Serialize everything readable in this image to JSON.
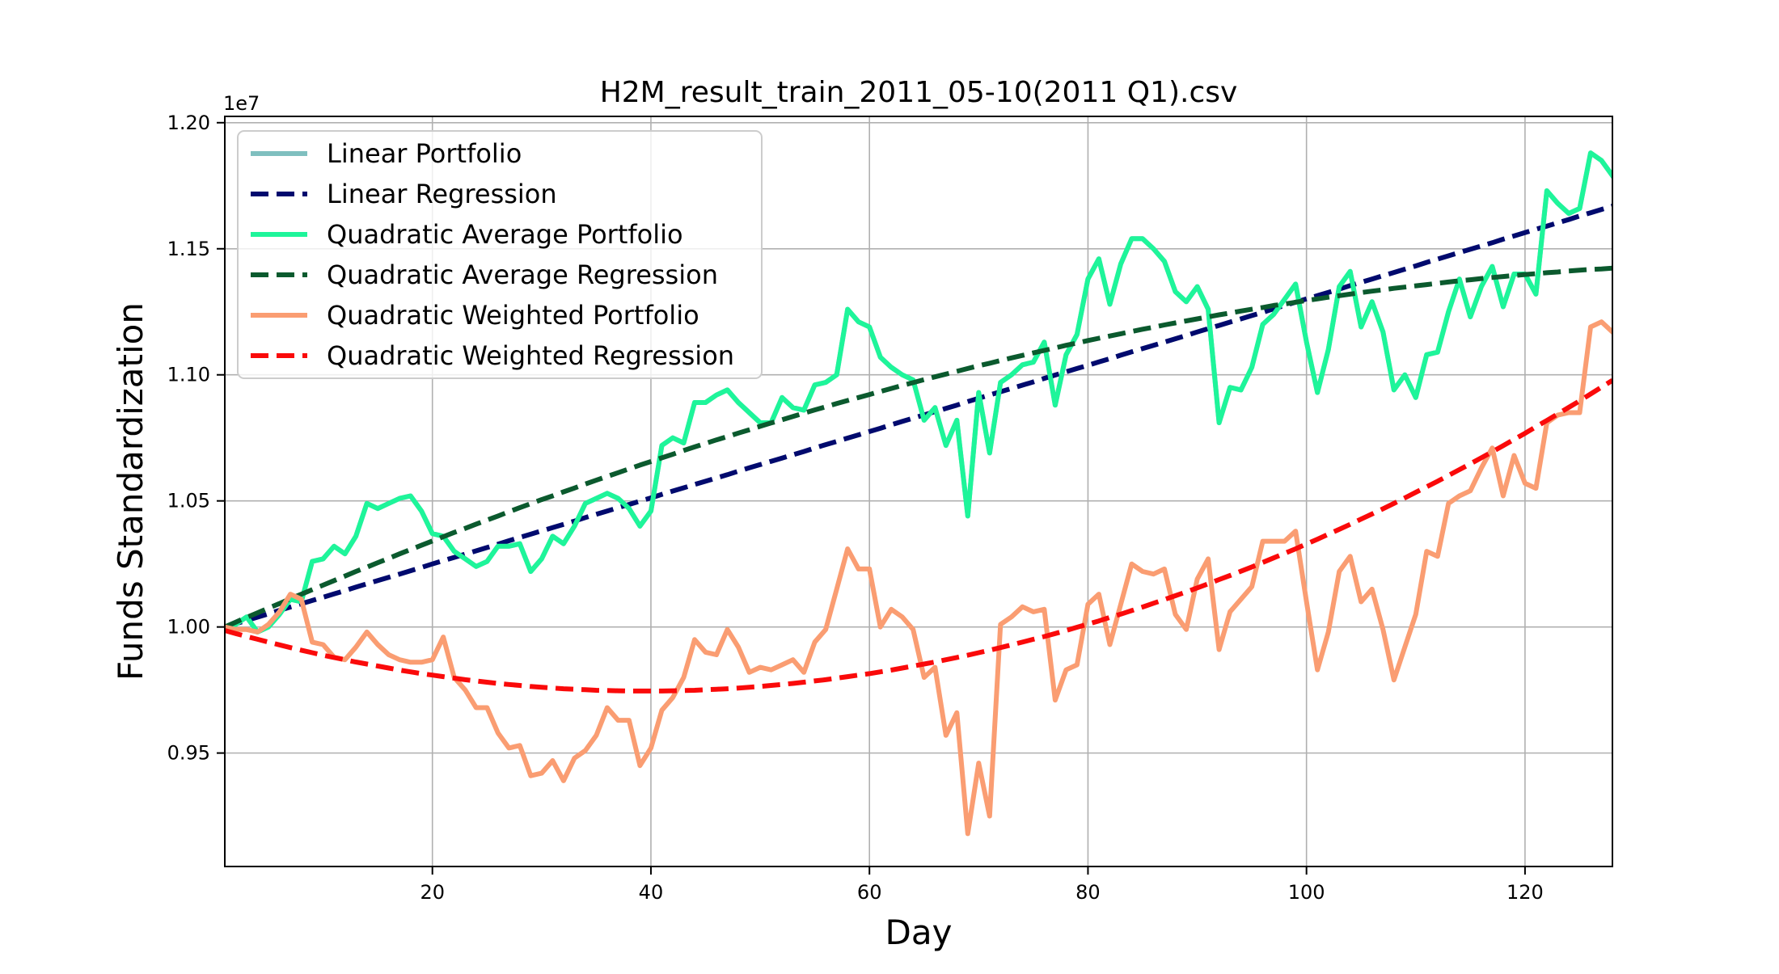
{
  "chart_data": {
    "type": "line",
    "title": "H2M_result_train_2011_05-10(2011 Q1).csv",
    "xlabel": "Day",
    "ylabel": "Funds Standardization",
    "y_offset_label": "1e7",
    "xlim": [
      1,
      128
    ],
    "ylim": [
      0.905,
      1.2025
    ],
    "x_ticks": [
      20,
      40,
      60,
      80,
      100,
      120
    ],
    "x_tick_labels": [
      "20",
      "40",
      "60",
      "80",
      "100",
      "120"
    ],
    "y_ticks": [
      0.95,
      1.0,
      1.05,
      1.1,
      1.15,
      1.2
    ],
    "y_tick_labels": [
      "0.95",
      "1.00",
      "1.05",
      "1.10",
      "1.15",
      "1.20"
    ],
    "grid": true,
    "legend_position": "top-left",
    "x": [
      1,
      2,
      3,
      4,
      5,
      6,
      7,
      8,
      9,
      10,
      11,
      12,
      13,
      14,
      15,
      16,
      17,
      18,
      19,
      20,
      21,
      22,
      23,
      24,
      25,
      26,
      27,
      28,
      29,
      30,
      31,
      32,
      33,
      34,
      35,
      36,
      37,
      38,
      39,
      40,
      41,
      42,
      43,
      44,
      45,
      46,
      47,
      48,
      49,
      50,
      51,
      52,
      53,
      54,
      55,
      56,
      57,
      58,
      59,
      60,
      61,
      62,
      63,
      64,
      65,
      66,
      67,
      68,
      69,
      70,
      71,
      72,
      73,
      74,
      75,
      76,
      77,
      78,
      79,
      80,
      81,
      82,
      83,
      84,
      85,
      86,
      87,
      88,
      89,
      90,
      91,
      92,
      93,
      94,
      95,
      96,
      97,
      98,
      99,
      100,
      101,
      102,
      103,
      104,
      105,
      106,
      107,
      108,
      109,
      110,
      111,
      112,
      113,
      114,
      115,
      116,
      117,
      118,
      119,
      120,
      121,
      122,
      123,
      124,
      125,
      126,
      127,
      128
    ],
    "series": [
      {
        "name": "Linear Portfolio",
        "color": "#7fbfbf",
        "style": "solid",
        "values": [
          1.0,
          1.001,
          1.004,
          0.998,
          1.0,
          1.005,
          1.011,
          1.01,
          1.026,
          1.027,
          1.032,
          1.029,
          1.036,
          1.049,
          1.047,
          1.049,
          1.051,
          1.052,
          1.046,
          1.037,
          1.036,
          1.03,
          1.027,
          1.024,
          1.026,
          1.032,
          1.032,
          1.033,
          1.022,
          1.027,
          1.036,
          1.033,
          1.04,
          1.049,
          1.051,
          1.053,
          1.051,
          1.047,
          1.04,
          1.046,
          1.072,
          1.075,
          1.073,
          1.089,
          1.089,
          1.092,
          1.094,
          1.089,
          1.085,
          1.081,
          1.081,
          1.091,
          1.087,
          1.086,
          1.096,
          1.097,
          1.1,
          1.126,
          1.121,
          1.119,
          1.107,
          1.103,
          1.1,
          1.098,
          1.082,
          1.087,
          1.072,
          1.082,
          1.044,
          1.093,
          1.069,
          1.097,
          1.1,
          1.104,
          1.105,
          1.113,
          1.088,
          1.108,
          1.116,
          1.138,
          1.146,
          1.128,
          1.144,
          1.154,
          1.154,
          1.15,
          1.145,
          1.133,
          1.129,
          1.135,
          1.126,
          1.081,
          1.095,
          1.094,
          1.103,
          1.12,
          1.124,
          1.13,
          1.136,
          1.113,
          1.093,
          1.11,
          1.135,
          1.141,
          1.119,
          1.129,
          1.117,
          1.094,
          1.1,
          1.091,
          1.108,
          1.109,
          1.125,
          1.138,
          1.123,
          1.135,
          1.143,
          1.127,
          1.14,
          1.14,
          1.132,
          1.173,
          1.168,
          1.164,
          1.166,
          1.188,
          1.185,
          1.179
        ]
      },
      {
        "name": "Linear Regression",
        "color": "#000a6e",
        "style": "dashed",
        "values": [
          1.0,
          1.0013,
          1.0026,
          1.0039,
          1.0052,
          1.0066,
          1.0079,
          1.0092,
          1.0105,
          1.0118,
          1.0131,
          1.0144,
          1.0158,
          1.0171,
          1.0184,
          1.0197,
          1.021,
          1.0223,
          1.0236,
          1.025,
          1.0263,
          1.0276,
          1.0289,
          1.0302,
          1.0315,
          1.0328,
          1.0342,
          1.0355,
          1.0368,
          1.0381,
          1.0394,
          1.0407,
          1.042,
          1.0434,
          1.0447,
          1.046,
          1.0473,
          1.0486,
          1.0499,
          1.0512,
          1.0526,
          1.0539,
          1.0552,
          1.0565,
          1.0578,
          1.0591,
          1.0604,
          1.0618,
          1.0631,
          1.0644,
          1.0657,
          1.067,
          1.0683,
          1.0696,
          1.071,
          1.0723,
          1.0736,
          1.0749,
          1.0762,
          1.0775,
          1.0788,
          1.0802,
          1.0815,
          1.0828,
          1.0841,
          1.0854,
          1.0867,
          1.088,
          1.0894,
          1.0907,
          1.092,
          1.0933,
          1.0946,
          1.0959,
          1.0972,
          1.0986,
          1.0999,
          1.1012,
          1.1025,
          1.1038,
          1.1051,
          1.1064,
          1.1078,
          1.1091,
          1.1104,
          1.1117,
          1.113,
          1.1143,
          1.1156,
          1.117,
          1.1183,
          1.1196,
          1.1209,
          1.1222,
          1.1235,
          1.1248,
          1.1262,
          1.1275,
          1.1288,
          1.1301,
          1.1314,
          1.1327,
          1.134,
          1.1354,
          1.1367,
          1.138,
          1.1393,
          1.1406,
          1.1419,
          1.1432,
          1.1446,
          1.1459,
          1.1472,
          1.1485,
          1.1498,
          1.1511,
          1.1524,
          1.1538,
          1.1551,
          1.1564,
          1.1577,
          1.159,
          1.1603,
          1.1616,
          1.163,
          1.1643,
          1.1656,
          1.1669
        ]
      },
      {
        "name": "Quadratic Average Portfolio",
        "color": "#1ef59a",
        "style": "solid",
        "values": [
          1.0,
          1.001,
          1.004,
          0.998,
          1.0,
          1.005,
          1.011,
          1.01,
          1.026,
          1.027,
          1.032,
          1.029,
          1.036,
          1.049,
          1.047,
          1.049,
          1.051,
          1.052,
          1.046,
          1.037,
          1.036,
          1.03,
          1.027,
          1.024,
          1.026,
          1.032,
          1.032,
          1.033,
          1.022,
          1.027,
          1.036,
          1.033,
          1.04,
          1.049,
          1.051,
          1.053,
          1.051,
          1.047,
          1.04,
          1.046,
          1.072,
          1.075,
          1.073,
          1.089,
          1.089,
          1.092,
          1.094,
          1.089,
          1.085,
          1.081,
          1.081,
          1.091,
          1.087,
          1.086,
          1.096,
          1.097,
          1.1,
          1.126,
          1.121,
          1.119,
          1.107,
          1.103,
          1.1,
          1.098,
          1.082,
          1.087,
          1.072,
          1.082,
          1.044,
          1.093,
          1.069,
          1.097,
          1.1,
          1.104,
          1.105,
          1.113,
          1.088,
          1.108,
          1.116,
          1.138,
          1.146,
          1.128,
          1.144,
          1.154,
          1.154,
          1.15,
          1.145,
          1.133,
          1.129,
          1.135,
          1.126,
          1.081,
          1.095,
          1.094,
          1.103,
          1.12,
          1.124,
          1.13,
          1.136,
          1.113,
          1.093,
          1.11,
          1.135,
          1.141,
          1.119,
          1.129,
          1.117,
          1.094,
          1.1,
          1.091,
          1.108,
          1.109,
          1.125,
          1.138,
          1.123,
          1.135,
          1.143,
          1.127,
          1.14,
          1.14,
          1.132,
          1.173,
          1.168,
          1.164,
          1.166,
          1.188,
          1.185,
          1.179
        ]
      },
      {
        "name": "Quadratic Average Regression",
        "color": "#0b5a2e",
        "style": "dashed",
        "values": [
          1.0,
          1.0019,
          1.0038,
          1.0056,
          1.0075,
          1.0093,
          1.0112,
          1.013,
          1.0148,
          1.0166,
          1.0184,
          1.0202,
          1.022,
          1.0237,
          1.0255,
          1.0272,
          1.029,
          1.0307,
          1.0324,
          1.0341,
          1.0358,
          1.0375,
          1.0391,
          1.0408,
          1.0424,
          1.044,
          1.0457,
          1.0473,
          1.0489,
          1.0505,
          1.052,
          1.0536,
          1.0551,
          1.0567,
          1.0582,
          1.0597,
          1.0612,
          1.0627,
          1.0642,
          1.0656,
          1.0671,
          1.0685,
          1.07,
          1.0714,
          1.0728,
          1.0742,
          1.0755,
          1.0769,
          1.0782,
          1.0796,
          1.0809,
          1.0822,
          1.0835,
          1.0848,
          1.0861,
          1.0873,
          1.0886,
          1.0898,
          1.091,
          1.0922,
          1.0934,
          1.0946,
          1.0958,
          1.0969,
          1.0981,
          1.0992,
          1.1003,
          1.1014,
          1.1025,
          1.1036,
          1.1046,
          1.1057,
          1.1067,
          1.1077,
          1.1087,
          1.1097,
          1.1107,
          1.1117,
          1.1126,
          1.1136,
          1.1145,
          1.1154,
          1.1163,
          1.1172,
          1.1181,
          1.1189,
          1.1198,
          1.1206,
          1.1214,
          1.1222,
          1.123,
          1.1238,
          1.1245,
          1.1253,
          1.126,
          1.1267,
          1.1275,
          1.1281,
          1.1288,
          1.1295,
          1.1301,
          1.1308,
          1.1314,
          1.132,
          1.1326,
          1.1332,
          1.1337,
          1.1343,
          1.1348,
          1.1353,
          1.1358,
          1.1363,
          1.1368,
          1.1373,
          1.1377,
          1.1382,
          1.1386,
          1.139,
          1.1394,
          1.1398,
          1.1401,
          1.1405,
          1.1408,
          1.1412,
          1.1415,
          1.1418,
          1.142,
          1.1423
        ]
      },
      {
        "name": "Quadratic Weighted Portfolio",
        "color": "#fa9d72",
        "style": "solid",
        "values": [
          1.0,
          0.999,
          0.999,
          0.998,
          1.001,
          1.006,
          1.013,
          1.011,
          0.994,
          0.993,
          0.988,
          0.987,
          0.992,
          0.998,
          0.993,
          0.989,
          0.987,
          0.986,
          0.986,
          0.987,
          0.996,
          0.98,
          0.975,
          0.968,
          0.968,
          0.958,
          0.952,
          0.953,
          0.941,
          0.942,
          0.947,
          0.939,
          0.948,
          0.951,
          0.957,
          0.968,
          0.963,
          0.963,
          0.945,
          0.952,
          0.967,
          0.972,
          0.98,
          0.995,
          0.99,
          0.989,
          0.999,
          0.992,
          0.982,
          0.984,
          0.983,
          0.985,
          0.987,
          0.982,
          0.994,
          0.999,
          1.015,
          1.031,
          1.023,
          1.023,
          1.0,
          1.007,
          1.004,
          0.999,
          0.98,
          0.984,
          0.957,
          0.966,
          0.918,
          0.946,
          0.925,
          1.001,
          1.004,
          1.008,
          1.006,
          1.007,
          0.971,
          0.983,
          0.985,
          1.009,
          1.013,
          0.993,
          1.009,
          1.025,
          1.022,
          1.021,
          1.023,
          1.005,
          0.999,
          1.019,
          1.027,
          0.991,
          1.006,
          1.011,
          1.016,
          1.034,
          1.034,
          1.034,
          1.038,
          1.01,
          0.983,
          0.998,
          1.022,
          1.028,
          1.01,
          1.015,
          0.999,
          0.979,
          0.992,
          1.005,
          1.03,
          1.028,
          1.049,
          1.052,
          1.054,
          1.063,
          1.071,
          1.052,
          1.068,
          1.057,
          1.055,
          1.081,
          1.084,
          1.085,
          1.085,
          1.119,
          1.121,
          1.117
        ]
      },
      {
        "name": "Quadratic Weighted Regression",
        "color": "#fa0a0a",
        "style": "dashed",
        "values": [
          0.9986,
          0.9974,
          0.9962,
          0.9951,
          0.994,
          0.9929,
          0.9918,
          0.9908,
          0.9898,
          0.9888,
          0.9879,
          0.987,
          0.9861,
          0.9853,
          0.9845,
          0.9837,
          0.9829,
          0.9822,
          0.9815,
          0.9809,
          0.9803,
          0.9797,
          0.9791,
          0.9786,
          0.9781,
          0.9776,
          0.9772,
          0.9768,
          0.9764,
          0.9761,
          0.9758,
          0.9755,
          0.9753,
          0.9751,
          0.9749,
          0.9748,
          0.9747,
          0.9746,
          0.9746,
          0.9746,
          0.9746,
          0.9747,
          0.9748,
          0.9749,
          0.9751,
          0.9753,
          0.9755,
          0.9758,
          0.9761,
          0.9764,
          0.9768,
          0.9772,
          0.9776,
          0.9781,
          0.9786,
          0.9791,
          0.9797,
          0.9803,
          0.9809,
          0.9815,
          0.9822,
          0.9829,
          0.9837,
          0.9845,
          0.9853,
          0.9861,
          0.987,
          0.9879,
          0.9888,
          0.9898,
          0.9908,
          0.9918,
          0.9929,
          0.994,
          0.9951,
          0.9962,
          0.9974,
          0.9986,
          0.9999,
          1.0011,
          1.0024,
          1.0038,
          1.0051,
          1.0065,
          1.0079,
          1.0094,
          1.0109,
          1.0124,
          1.0139,
          1.0155,
          1.0171,
          1.0188,
          1.0204,
          1.0221,
          1.0238,
          1.0256,
          1.0274,
          1.0292,
          1.031,
          1.0329,
          1.0348,
          1.0368,
          1.0387,
          1.0407,
          1.0428,
          1.0448,
          1.0469,
          1.049,
          1.0512,
          1.0534,
          1.0556,
          1.0578,
          1.0601,
          1.0624,
          1.0647,
          1.0671,
          1.0695,
          1.0719,
          1.0744,
          1.0768,
          1.0794,
          1.0819,
          1.0845,
          1.0871,
          1.0897,
          1.0924,
          1.0951,
          1.0978
        ]
      }
    ]
  }
}
